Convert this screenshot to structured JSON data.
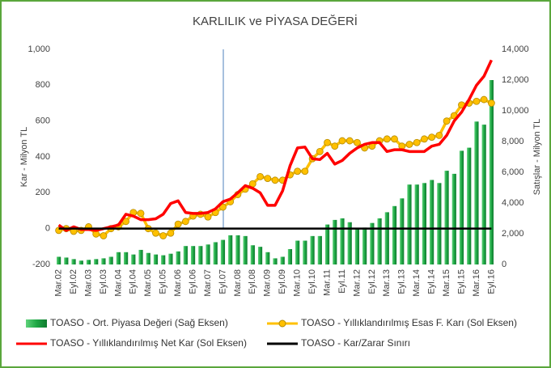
{
  "chart_data": {
    "type": "combo",
    "title": "KARLILIK ve PİYASA DEĞERİ",
    "y_label": "Kar - Milyon TL",
    "y2_label": "Satışlar - Milyon TL",
    "categories": [
      "Mar.02",
      null,
      "Eyl.02",
      null,
      "Mar.03",
      null,
      "Eyl.03",
      null,
      "Mar.04",
      null,
      "Eyl.04",
      null,
      "Mar.05",
      null,
      "Eyl.05",
      null,
      "Mar.06",
      null,
      "Eyl.06",
      null,
      "Mar.07",
      null,
      "Eyl.07",
      null,
      "Mar.08",
      null,
      "Eyl.08",
      null,
      "Mar.09",
      null,
      "Eyl.09",
      null,
      "Mar.10",
      null,
      "Eyl.10",
      null,
      "Mar.11",
      null,
      "Eyl.11",
      null,
      "Mar.12",
      null,
      "Eyl.12",
      null,
      "Mar.13",
      null,
      "Eyl.13",
      null,
      "Mar.14",
      null,
      "Eyl.14",
      null,
      "Mar.15",
      null,
      "Eyl.15",
      null,
      "Mar.16",
      null,
      "Eyl.16"
    ],
    "ylim": [
      -200,
      1000
    ],
    "yticks": [
      {
        "value": 1000,
        "label": "1,000"
      },
      800,
      600,
      400,
      200,
      0,
      -200
    ],
    "y2lim": [
      0,
      14000
    ],
    "y2ticks": [
      {
        "value": 14000,
        "label": "14,000"
      },
      {
        "value": 12000,
        "label": "12,000"
      },
      {
        "value": 10000,
        "label": "10,000"
      },
      {
        "value": 8000,
        "label": "8,000"
      },
      {
        "value": 6000,
        "label": "6,000"
      },
      {
        "value": 4000,
        "label": "4,000"
      },
      {
        "value": 2000,
        "label": "2,000"
      },
      0
    ],
    "series": [
      {
        "name": "TOASO - Ort. Piyasa Değeri (Sağ Eksen)",
        "type": "bar",
        "axis": "y2",
        "color": "#1ea845",
        "values": [
          500,
          450,
          350,
          250,
          300,
          350,
          400,
          500,
          800,
          800,
          650,
          950,
          750,
          650,
          600,
          700,
          850,
          1200,
          1200,
          1200,
          1300,
          1450,
          1600,
          1900,
          1900,
          1850,
          1250,
          1150,
          800,
          400,
          500,
          1000,
          1550,
          1550,
          1850,
          1850,
          2600,
          2900,
          3000,
          2750,
          2300,
          2400,
          2700,
          3000,
          3400,
          3800,
          4300,
          5200,
          5200,
          5300,
          5500,
          5300,
          6100,
          5900,
          7400,
          7600,
          9300,
          9100,
          12000
        ]
      },
      {
        "name": "TOASO - Yıllıklandırılmış Esas F. Karı (Sol Eksen)",
        "type": "line-marker",
        "color": "#ffc000",
        "values": [
          -10,
          0,
          -15,
          -10,
          10,
          -30,
          -40,
          0,
          10,
          40,
          90,
          85,
          0,
          -25,
          -40,
          -25,
          25,
          40,
          70,
          80,
          65,
          90,
          120,
          150,
          190,
          220,
          250,
          290,
          280,
          270,
          270,
          300,
          320,
          320,
          390,
          430,
          480,
          460,
          490,
          490,
          480,
          450,
          460,
          490,
          500,
          500,
          460,
          470,
          480,
          500,
          510,
          520,
          600,
          630,
          690,
          700,
          710,
          720,
          700
        ]
      },
      {
        "name": "TOASO - Yıllıklandırılmış Net Kar (Sol Eksen)",
        "type": "line",
        "color": "#ff0000",
        "values": [
          20,
          -10,
          10,
          -5,
          -5,
          -10,
          0,
          10,
          20,
          80,
          70,
          50,
          50,
          55,
          80,
          140,
          155,
          90,
          85,
          85,
          90,
          110,
          150,
          165,
          200,
          240,
          225,
          200,
          130,
          130,
          210,
          350,
          450,
          455,
          390,
          385,
          420,
          360,
          380,
          420,
          450,
          470,
          480,
          480,
          430,
          440,
          440,
          430,
          430,
          430,
          460,
          470,
          520,
          600,
          650,
          720,
          800,
          850,
          940
        ]
      },
      {
        "name": "TOASO - Kar/Zarar Sınırı",
        "type": "line",
        "color": "#000000",
        "values": [
          0,
          0,
          0,
          0,
          0,
          0,
          0,
          0,
          0,
          0,
          0,
          0,
          0,
          0,
          0,
          0,
          0,
          0,
          0,
          0,
          0,
          0,
          0,
          0,
          0,
          0,
          0,
          0,
          0,
          0,
          0,
          0,
          0,
          0,
          0,
          0,
          0,
          0,
          0,
          0,
          0,
          0,
          0,
          0,
          0,
          0,
          0,
          0,
          0,
          0,
          0,
          0,
          0,
          0,
          0,
          0,
          0,
          0,
          0
        ]
      }
    ]
  }
}
